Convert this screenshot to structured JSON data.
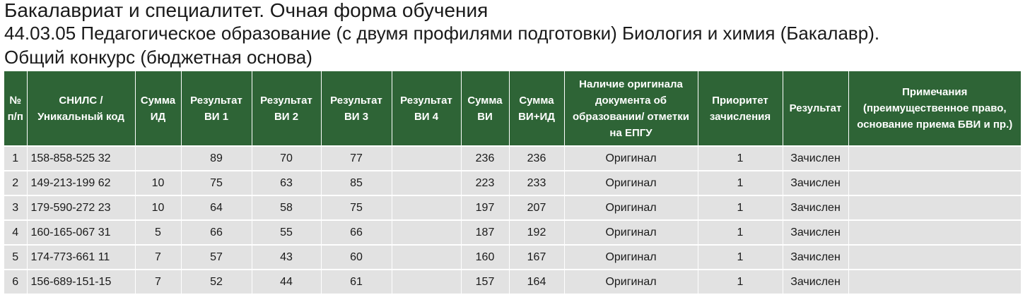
{
  "heading": {
    "title": "Бакалавриат и специалитет. Очная форма обучения",
    "program": "44.03.05 Педагогическое образование (с двумя профилями подготовки) Биология и химия (Бакалавр).",
    "competition": "Общий конкурс (бюджетная основа)"
  },
  "table": {
    "headers": [
      "№ п/п",
      "СНИЛС / Уникальный код",
      "Сумма ИД",
      "Результат ВИ 1",
      "Результат ВИ 2",
      "Результат ВИ 3",
      "Результат ВИ 4",
      "Сумма ВИ",
      "Сумма ВИ+ИД",
      "Наличие оригинала документа об образовании/ отметки на ЕПГУ",
      "Приоритет зачисления",
      "Результат",
      "Примечания (преимущественное право, основание приема БВИ и пр.)"
    ],
    "rows": [
      [
        "1",
        "158-858-525 32",
        "",
        "89",
        "70",
        "77",
        "",
        "236",
        "236",
        "Оригинал",
        "1",
        "Зачислен",
        ""
      ],
      [
        "2",
        "149-213-199 62",
        "10",
        "75",
        "63",
        "85",
        "",
        "223",
        "233",
        "Оригинал",
        "1",
        "Зачислен",
        ""
      ],
      [
        "3",
        "179-590-272 23",
        "10",
        "64",
        "58",
        "75",
        "",
        "197",
        "207",
        "Оригинал",
        "1",
        "Зачислен",
        ""
      ],
      [
        "4",
        "160-165-067 31",
        "5",
        "66",
        "55",
        "66",
        "",
        "187",
        "192",
        "Оригинал",
        "1",
        "Зачислен",
        ""
      ],
      [
        "5",
        "174-773-661 11",
        "7",
        "57",
        "43",
        "60",
        "",
        "160",
        "167",
        "Оригинал",
        "1",
        "Зачислен",
        ""
      ],
      [
        "6",
        "156-689-151-15",
        "7",
        "52",
        "44",
        "61",
        "",
        "157",
        "164",
        "Оригинал",
        "1",
        "Зачислен",
        ""
      ]
    ]
  }
}
